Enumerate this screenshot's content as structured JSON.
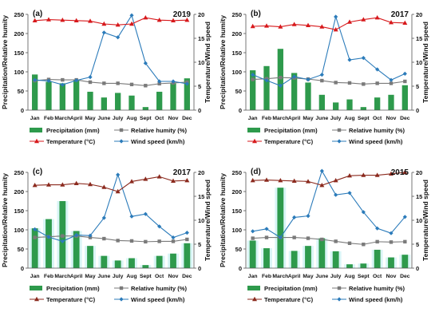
{
  "months": [
    "Jan",
    "Feb",
    "March",
    "April",
    "May",
    "June",
    "July",
    "Aug",
    "Sept",
    "Oct",
    "Nov",
    "Dec"
  ],
  "axis_text": {
    "left_ylabel": "Precipitation/Relative humity",
    "right_ylabel": "Temperature/Wind speed"
  },
  "legend_labels": {
    "precip": "Precipitation (mm)",
    "rh": "Relative humity (%)",
    "temp": "Temperature (°C)",
    "wind": "Wind speed (km/h)"
  },
  "colors": {
    "precip": "#2e9a4c",
    "rh": "#7a7a7a",
    "temp_a": "#d7191c",
    "temp_c": "#8b2a1e",
    "wind": "#2b7bba",
    "shade": "#bfeff0"
  },
  "chart_data": [
    {
      "type": "bar",
      "panel": "(a)",
      "year": "2019",
      "style": "a",
      "left_ylim": [
        0,
        250
      ],
      "left_ticks": [
        0,
        50,
        100,
        150,
        200,
        250
      ],
      "right_ylim": [
        0,
        20
      ],
      "right_ticks": [
        0,
        5,
        10,
        15,
        20
      ],
      "series": [
        {
          "name": "Precipitation (mm)",
          "axis": "left",
          "values": [
            93,
            74,
            70,
            80,
            48,
            33,
            45,
            38,
            8,
            48,
            70,
            83
          ]
        },
        {
          "name": "Relative humity (%)",
          "axis": "left",
          "values": [
            77,
            80,
            79,
            79,
            73,
            70,
            70,
            67,
            64,
            69,
            71,
            73
          ]
        },
        {
          "name": "Temperature (°C)",
          "axis": "right",
          "values": [
            18.7,
            18.9,
            18.8,
            18.7,
            18.6,
            18.0,
            17.8,
            18.0,
            19.3,
            18.8,
            18.7,
            18.8
          ]
        },
        {
          "name": "Wind speed (km/h)",
          "axis": "right",
          "values": [
            6.3,
            6.1,
            5.3,
            6.2,
            6.9,
            16.2,
            15.2,
            19.8,
            9.8,
            6.0,
            6.0,
            5.5
          ]
        }
      ]
    },
    {
      "type": "bar",
      "panel": "(b)",
      "year": "2017",
      "style": "a",
      "left_ylim": [
        0,
        250
      ],
      "left_ticks": [
        0,
        50,
        100,
        150,
        200,
        250
      ],
      "right_ylim": [
        0,
        20
      ],
      "right_ticks": [
        0,
        5,
        10,
        15,
        20
      ],
      "series": [
        {
          "name": "Precipitation (mm)",
          "axis": "left",
          "values": [
            104,
            115,
            160,
            97,
            72,
            40,
            20,
            28,
            8,
            33,
            40,
            65
          ]
        },
        {
          "name": "Relative humity (%)",
          "axis": "left",
          "values": [
            80,
            82,
            85,
            84,
            81,
            77,
            72,
            71,
            68,
            70,
            70,
            75
          ]
        },
        {
          "name": "Temperature (°C)",
          "axis": "right",
          "values": [
            17.5,
            17.6,
            17.4,
            17.9,
            17.7,
            17.4,
            16.8,
            18.4,
            18.9,
            19.3,
            18.3,
            18.2
          ]
        },
        {
          "name": "Wind speed (km/h)",
          "axis": "right",
          "values": [
            7.4,
            6.2,
            5.1,
            7.0,
            6.4,
            7.4,
            19.5,
            10.5,
            10.9,
            8.5,
            6.3,
            7.6
          ]
        }
      ]
    },
    {
      "type": "bar",
      "panel": "(c)",
      "year": "2017",
      "style": "c",
      "left_ylim": [
        0,
        250
      ],
      "left_ticks": [
        0,
        50,
        100,
        150,
        200,
        250
      ],
      "right_ylim": [
        0,
        20
      ],
      "right_ticks": [
        0,
        5,
        10,
        15,
        20
      ],
      "series": [
        {
          "name": "Precipitation (mm)",
          "axis": "left",
          "values": [
            104,
            128,
            175,
            97,
            58,
            32,
            20,
            26,
            8,
            32,
            38,
            65
          ]
        },
        {
          "name": "Relative humity (%)",
          "axis": "left",
          "values": [
            80,
            82,
            84,
            84,
            80,
            77,
            72,
            71,
            69,
            70,
            70,
            75
          ]
        },
        {
          "name": "Temperature (°C)",
          "axis": "right",
          "values": [
            17.3,
            17.4,
            17.4,
            17.7,
            17.5,
            16.9,
            16.0,
            18.1,
            18.6,
            19.1,
            18.2,
            18.3
          ]
        },
        {
          "name": "Wind speed (km/h)",
          "axis": "right",
          "values": [
            8.1,
            6.5,
            5.6,
            6.9,
            6.8,
            10.5,
            19.5,
            10.8,
            11.3,
            8.7,
            6.4,
            7.4
          ]
        }
      ]
    },
    {
      "type": "bar",
      "panel": "(d)",
      "year": "2015",
      "style": "c",
      "left_ylim": [
        0,
        250
      ],
      "left_ticks": [
        0,
        50,
        100,
        150,
        200,
        250
      ],
      "right_ylim": [
        0,
        20
      ],
      "right_ticks": [
        0,
        5,
        10,
        15,
        20
      ],
      "series": [
        {
          "name": "Precipitation (mm)",
          "axis": "left",
          "values": [
            72,
            52,
            210,
            45,
            58,
            78,
            44,
            10,
            12,
            48,
            28,
            35
          ]
        },
        {
          "name": "Relative humity (%)",
          "axis": "left",
          "values": [
            78,
            80,
            80,
            80,
            78,
            75,
            70,
            65,
            62,
            69,
            68,
            69
          ]
        },
        {
          "name": "Temperature (°C)",
          "axis": "right",
          "values": [
            18.3,
            18.4,
            18.3,
            18.2,
            18.1,
            17.3,
            18.3,
            19.3,
            19.4,
            19.4,
            19.7,
            20.0
          ]
        },
        {
          "name": "Wind speed (km/h)",
          "axis": "right",
          "values": [
            7.7,
            8.2,
            6.4,
            10.6,
            10.9,
            20.3,
            15.3,
            15.7,
            11.7,
            8.3,
            7.3,
            10.7
          ]
        }
      ]
    }
  ]
}
